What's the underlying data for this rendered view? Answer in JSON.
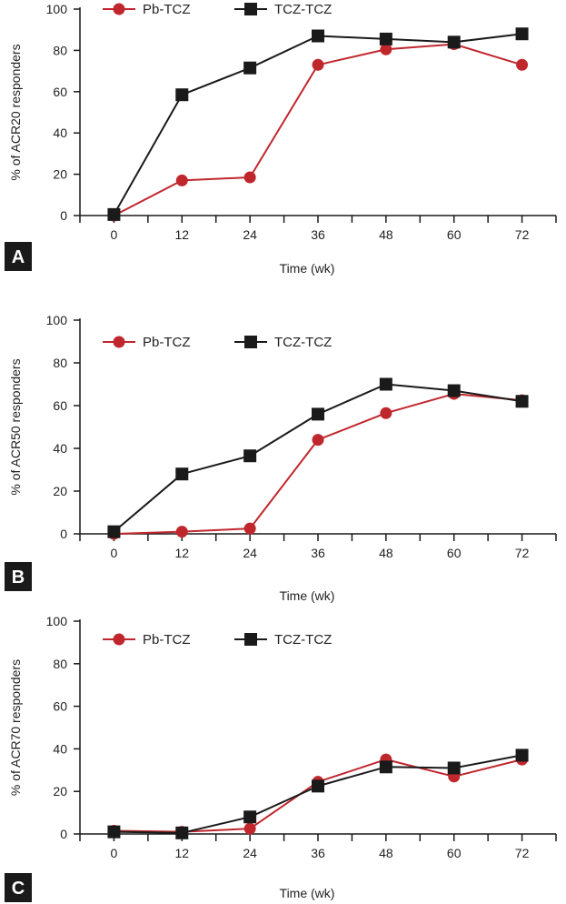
{
  "colors": {
    "pb_tcz": "#c0272d",
    "tcz_tcz": "#1a1a1a",
    "axis": "#1a1a1a",
    "panel_badge": "#1a1a1a"
  },
  "chart_data": [
    {
      "type": "line",
      "panel_label": "A",
      "xlabel": "Time (wk)",
      "ylabel": "% of ACR20 responders",
      "x": [
        0,
        12,
        24,
        36,
        48,
        60,
        72
      ],
      "x_ticks": [
        "0",
        "12",
        "24",
        "36",
        "48",
        "60",
        "72"
      ],
      "y_ticks": [
        "0",
        "20",
        "40",
        "60",
        "80",
        "100"
      ],
      "xlim": [
        -6,
        78
      ],
      "ylim": [
        0,
        100
      ],
      "legend_position": "top-left",
      "series": [
        {
          "name": "Pb-TCZ",
          "marker": "circle",
          "values": [
            0,
            17,
            18.5,
            73,
            80.5,
            83,
            73
          ]
        },
        {
          "name": "TCZ-TCZ",
          "marker": "square",
          "values": [
            0.5,
            58.5,
            71.5,
            87,
            85.5,
            84,
            88
          ]
        }
      ]
    },
    {
      "type": "line",
      "panel_label": "B",
      "xlabel": "Time (wk)",
      "ylabel": "% of ACR50 responders",
      "x": [
        0,
        12,
        24,
        36,
        48,
        60,
        72
      ],
      "x_ticks": [
        "0",
        "12",
        "24",
        "36",
        "48",
        "60",
        "72"
      ],
      "y_ticks": [
        "0",
        "20",
        "40",
        "60",
        "80",
        "100"
      ],
      "xlim": [
        -6,
        78
      ],
      "ylim": [
        0,
        100
      ],
      "legend_position": "top-left",
      "series": [
        {
          "name": "Pb-TCZ",
          "marker": "circle",
          "values": [
            0,
            1,
            2.5,
            44,
            56.5,
            65.5,
            62.5
          ]
        },
        {
          "name": "TCZ-TCZ",
          "marker": "square",
          "values": [
            1,
            28,
            36.5,
            56,
            70,
            67,
            62
          ]
        }
      ]
    },
    {
      "type": "line",
      "panel_label": "C",
      "xlabel": "Time (wk)",
      "ylabel": "% of ACR70 responders",
      "x": [
        0,
        12,
        24,
        36,
        48,
        60,
        72
      ],
      "x_ticks": [
        "0",
        "12",
        "24",
        "36",
        "48",
        "60",
        "72"
      ],
      "y_ticks": [
        "0",
        "20",
        "40",
        "60",
        "80",
        "100"
      ],
      "xlim": [
        -6,
        78
      ],
      "ylim": [
        0,
        100
      ],
      "legend_position": "top-left",
      "series": [
        {
          "name": "Pb-TCZ",
          "marker": "circle",
          "values": [
            1.5,
            1,
            2.5,
            24.5,
            35,
            27,
            35
          ]
        },
        {
          "name": "TCZ-TCZ",
          "marker": "square",
          "values": [
            1,
            0.5,
            8,
            22.5,
            31.5,
            31,
            37
          ]
        }
      ]
    }
  ]
}
